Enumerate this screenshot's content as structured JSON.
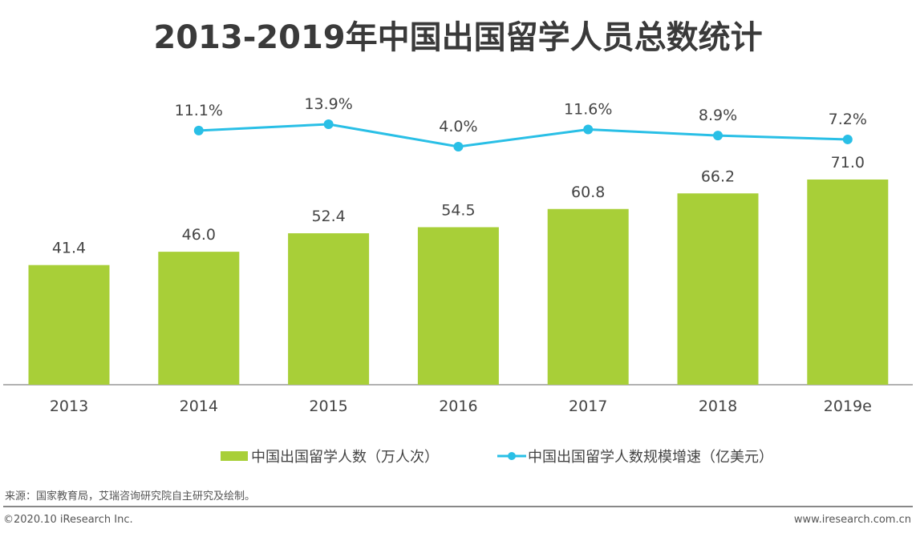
{
  "chart_data": {
    "type": "bar+line",
    "title": "2013-2019年中国出国留学人员总数统计",
    "categories": [
      "2013",
      "2014",
      "2015",
      "2016",
      "2017",
      "2018",
      "2019e"
    ],
    "series": [
      {
        "name": "中国出国留学人数（万人次）",
        "type": "bar",
        "color": "#a8cf38",
        "values": [
          41.4,
          46.0,
          52.4,
          54.5,
          60.8,
          66.2,
          71.0
        ],
        "labels": [
          "41.4",
          "46.0",
          "52.4",
          "54.5",
          "60.8",
          "66.2",
          "71.0"
        ]
      },
      {
        "name": "中国出国留学人数规模增速（亿美元）",
        "type": "line",
        "color": "#29bfe6",
        "values": [
          null,
          11.1,
          13.9,
          4.0,
          11.6,
          8.9,
          7.2
        ],
        "labels": [
          "",
          "11.1%",
          "13.9%",
          "4.0%",
          "11.6%",
          "8.9%",
          "7.2%"
        ]
      }
    ],
    "legend": "bottom",
    "grid": false
  },
  "footer": {
    "source": "来源：国家教育局，艾瑞咨询研究院自主研究及绘制。",
    "copyright": "©2020.10 iResearch Inc.",
    "url": "www.iresearch.com.cn"
  }
}
